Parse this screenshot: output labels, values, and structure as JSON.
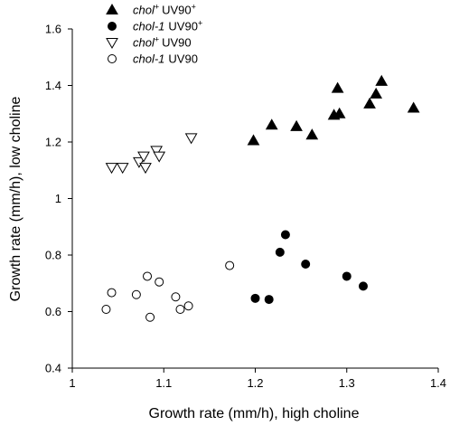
{
  "chart_data": {
    "type": "scatter",
    "title": "",
    "xlabel": "Growth rate (mm/h), high choline",
    "ylabel": "Growth rate (mm/h), low choline",
    "xlim": [
      1.0,
      1.4
    ],
    "ylim": [
      0.4,
      1.6
    ],
    "x_ticks": [
      1,
      1.1,
      1.2,
      1.3,
      1.4
    ],
    "x_tick_labels": [
      "1",
      "1.1",
      "1.2",
      "1.3",
      "1.4"
    ],
    "y_ticks": [
      0.4,
      0.6,
      0.8,
      1.0,
      1.2,
      1.4,
      1.6
    ],
    "y_tick_labels": [
      "0.4",
      "0.6",
      "0.8",
      "1",
      "1.2",
      "1.4",
      "1.6"
    ],
    "grid": false,
    "legend_position": "top-left",
    "series": [
      {
        "name": "chol+ UV90+",
        "legend": {
          "genotype": "chol",
          "genotype_sup": "+",
          "strain": "UV90",
          "strain_sup": "+"
        },
        "marker": "triangle-up-filled",
        "color": "#000000",
        "points": [
          [
            1.198,
            1.205
          ],
          [
            1.218,
            1.26
          ],
          [
            1.245,
            1.255
          ],
          [
            1.262,
            1.225
          ],
          [
            1.286,
            1.295
          ],
          [
            1.29,
            1.39
          ],
          [
            1.292,
            1.3
          ],
          [
            1.325,
            1.335
          ],
          [
            1.332,
            1.37
          ],
          [
            1.338,
            1.415
          ],
          [
            1.373,
            1.32
          ]
        ]
      },
      {
        "name": "chol-1 UV90+",
        "legend": {
          "genotype": "chol-1",
          "genotype_sup": "",
          "strain": "UV90",
          "strain_sup": "+"
        },
        "marker": "circle-filled",
        "color": "#000000",
        "points": [
          [
            1.2,
            0.647
          ],
          [
            1.215,
            0.643
          ],
          [
            1.227,
            0.81
          ],
          [
            1.233,
            0.872
          ],
          [
            1.255,
            0.768
          ],
          [
            1.3,
            0.725
          ],
          [
            1.318,
            0.69
          ]
        ]
      },
      {
        "name": "chol+ UV90",
        "legend": {
          "genotype": "chol",
          "genotype_sup": "+",
          "strain": "UV90",
          "strain_sup": ""
        },
        "marker": "triangle-down-open",
        "color": "#000000",
        "points": [
          [
            1.043,
            1.11
          ],
          [
            1.055,
            1.11
          ],
          [
            1.073,
            1.13
          ],
          [
            1.078,
            1.15
          ],
          [
            1.08,
            1.11
          ],
          [
            1.092,
            1.17
          ],
          [
            1.095,
            1.15
          ],
          [
            1.13,
            1.215
          ]
        ]
      },
      {
        "name": "chol-1 UV90",
        "legend": {
          "genotype": "chol-1",
          "genotype_sup": "",
          "strain": "UV90",
          "strain_sup": ""
        },
        "marker": "circle-open",
        "color": "#000000",
        "points": [
          [
            1.037,
            0.608
          ],
          [
            1.043,
            0.667
          ],
          [
            1.07,
            0.66
          ],
          [
            1.082,
            0.725
          ],
          [
            1.085,
            0.58
          ],
          [
            1.095,
            0.705
          ],
          [
            1.113,
            0.652
          ],
          [
            1.118,
            0.608
          ],
          [
            1.127,
            0.62
          ],
          [
            1.172,
            0.763
          ]
        ]
      }
    ]
  }
}
